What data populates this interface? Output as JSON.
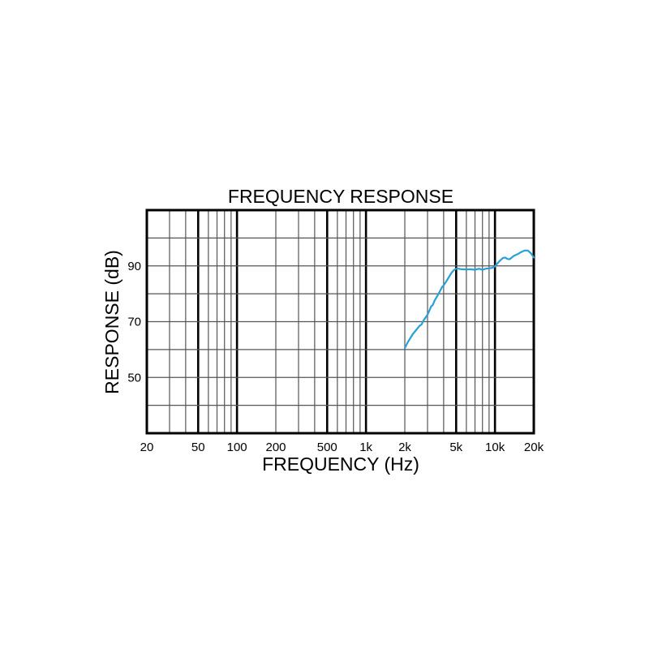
{
  "chart_data": {
    "type": "line",
    "title": "FREQUENCY RESPONSE",
    "xlabel": "FREQUENCY (Hz)",
    "ylabel": "RESPONSE (dB)",
    "x_scale": "log",
    "xlim": [
      20,
      20000
    ],
    "ylim": [
      30,
      110
    ],
    "x_ticks": [
      {
        "value": 20,
        "label": "20"
      },
      {
        "value": 50,
        "label": "50"
      },
      {
        "value": 100,
        "label": "100"
      },
      {
        "value": 200,
        "label": "200"
      },
      {
        "value": 500,
        "label": "500"
      },
      {
        "value": 1000,
        "label": "1k"
      },
      {
        "value": 2000,
        "label": "2k"
      },
      {
        "value": 5000,
        "label": "5k"
      },
      {
        "value": 10000,
        "label": "10k"
      },
      {
        "value": 20000,
        "label": "20k"
      }
    ],
    "y_ticks": [
      {
        "value": 50,
        "label": "50"
      },
      {
        "value": 70,
        "label": "70"
      },
      {
        "value": 90,
        "label": "90"
      }
    ],
    "grid": true,
    "series": [
      {
        "color": "#2a9fd6",
        "x": [
          2000,
          2100,
          2200,
          2300,
          2400,
          2500,
          2600,
          2700,
          2800,
          2900,
          3000,
          3100,
          3200,
          3300,
          3400,
          3500,
          3600,
          3700,
          3800,
          3900,
          4000,
          4200,
          4400,
          4600,
          4800,
          5000,
          5200,
          5500,
          6000,
          6500,
          7000,
          7500,
          8000,
          8500,
          9000,
          9500,
          10000,
          10500,
          11000,
          11500,
          12000,
          12500,
          13000,
          13500,
          14000,
          15000,
          16000,
          17000,
          18000,
          19000,
          20000
        ],
        "y": [
          60.5,
          62.5,
          64.0,
          65.5,
          66.5,
          67.5,
          68.5,
          69.0,
          70.5,
          71.5,
          72.5,
          74.0,
          75.5,
          76.0,
          77.5,
          78.5,
          79.5,
          80.5,
          81.5,
          82.5,
          83.0,
          84.5,
          86.0,
          87.5,
          88.5,
          89.0,
          89.0,
          88.8,
          88.7,
          88.8,
          88.6,
          89.0,
          88.6,
          89.0,
          89.1,
          89.3,
          89.8,
          91.0,
          92.0,
          92.8,
          93.0,
          92.5,
          92.4,
          93.0,
          93.6,
          94.2,
          95.0,
          95.5,
          95.5,
          94.5,
          93.0
        ]
      }
    ]
  }
}
